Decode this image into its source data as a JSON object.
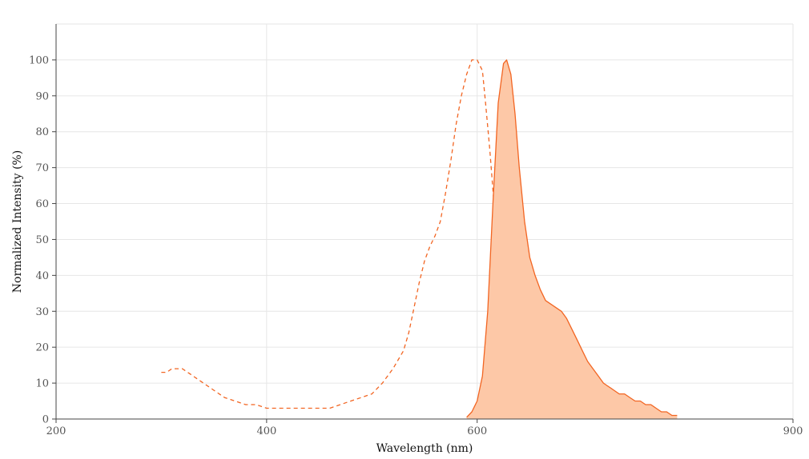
{
  "chart_data": {
    "type": "area",
    "title": "",
    "xlabel": "Wavelength (nm)",
    "ylabel": "Normalized Intensity (%)",
    "xlim": [
      200,
      900
    ],
    "ylim": [
      0,
      110
    ],
    "xticks": [
      200,
      400,
      600,
      900
    ],
    "yticks": [
      0,
      10,
      20,
      30,
      40,
      50,
      60,
      70,
      80,
      90,
      100
    ],
    "xgrid": [
      400,
      600,
      900
    ],
    "grid": true,
    "legend": "none",
    "series": [
      {
        "style": "dashed",
        "filled": false,
        "color": "#f26522",
        "x": [
          300,
          305,
          310,
          315,
          320,
          325,
          330,
          335,
          340,
          345,
          350,
          360,
          370,
          380,
          390,
          400,
          420,
          440,
          460,
          470,
          480,
          490,
          500,
          510,
          520,
          530,
          535,
          540,
          545,
          550,
          555,
          560,
          565,
          570,
          575,
          580,
          585,
          590,
          595,
          600,
          605,
          608,
          612,
          616,
          620,
          624,
          628,
          632,
          636,
          640,
          645,
          650,
          655,
          660,
          665,
          670
        ],
        "y": [
          13,
          13,
          14,
          14,
          14,
          13,
          12,
          11,
          10,
          9,
          8,
          6,
          5,
          4,
          4,
          3,
          3,
          3,
          3,
          4,
          5,
          6,
          7,
          10,
          14,
          19,
          24,
          31,
          38,
          44,
          48,
          51,
          55,
          63,
          72,
          82,
          90,
          96,
          100,
          100,
          97,
          88,
          75,
          60,
          46,
          34,
          24,
          16,
          10,
          6,
          3,
          2,
          1.5,
          1,
          0.5,
          0.5
        ]
      },
      {
        "style": "solid",
        "filled": true,
        "color": "#f26522",
        "fill": "#fdc8a7",
        "x": [
          590,
          595,
          600,
          605,
          610,
          615,
          620,
          625,
          628,
          632,
          636,
          640,
          645,
          650,
          655,
          660,
          665,
          670,
          675,
          680,
          685,
          690,
          695,
          700,
          705,
          710,
          715,
          720,
          725,
          730,
          735,
          740,
          745,
          750,
          755,
          760,
          765,
          770,
          775,
          780,
          785,
          790
        ],
        "y": [
          0.5,
          2,
          5,
          12,
          30,
          60,
          88,
          99,
          100,
          96,
          85,
          70,
          55,
          45,
          40,
          36,
          33,
          32,
          31,
          30,
          28,
          25,
          22,
          19,
          16,
          14,
          12,
          10,
          9,
          8,
          7,
          7,
          6,
          5,
          5,
          4,
          4,
          3,
          2,
          2,
          1,
          1
        ]
      }
    ]
  }
}
